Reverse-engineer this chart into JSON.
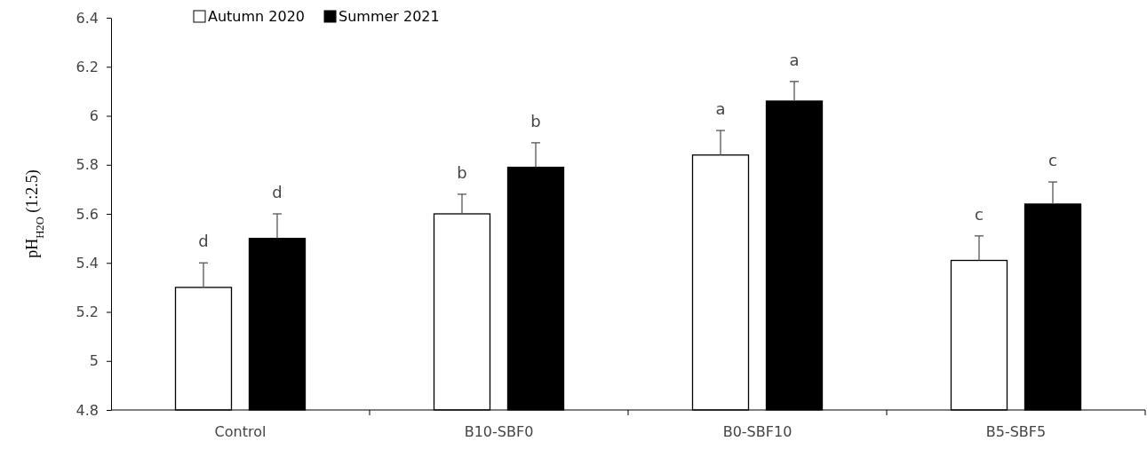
{
  "chart_data": {
    "type": "bar",
    "ylabel": "pH$_{H2O}$ (1:2.5)",
    "categories": [
      "Control",
      "B10-SBF0",
      "B0-SBF10",
      "B5-SBF5"
    ],
    "series": [
      {
        "name": "Autumn 2020",
        "color": "#ffffff",
        "values": [
          5.3,
          5.6,
          5.84,
          5.41
        ],
        "errors": [
          [
            5.3,
            5.4
          ],
          [
            5.6,
            5.68
          ],
          [
            5.84,
            5.94
          ],
          [
            5.41,
            5.51
          ]
        ]
      },
      {
        "name": "Summer 2021",
        "color": "#000000",
        "values": [
          5.5,
          5.79,
          6.06,
          5.64
        ],
        "errors": [
          [
            5.5,
            5.6
          ],
          [
            5.79,
            5.89
          ],
          [
            6.06,
            6.14
          ],
          [
            5.64,
            5.73
          ]
        ]
      }
    ],
    "ylim": [
      4.8,
      6.4
    ],
    "yticks": [
      4.8,
      5,
      5.2,
      5.4,
      5.6,
      5.8,
      6,
      6.2,
      6.4
    ],
    "annotations": [
      "d",
      "d",
      "b",
      "b",
      "a",
      "a",
      "c",
      "c"
    ],
    "legend": "top left",
    "grid": false
  }
}
